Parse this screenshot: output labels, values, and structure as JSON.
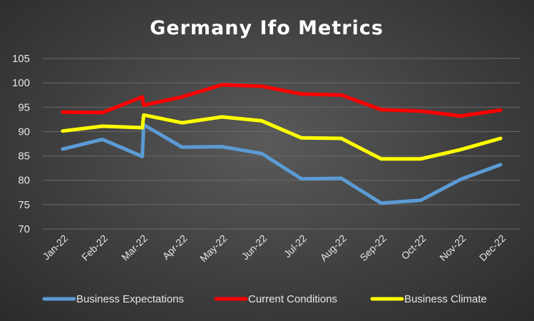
{
  "chart_data": {
    "type": "line",
    "title": "Germany Ifo Metrics",
    "xlabel": "",
    "ylabel": "",
    "ylim": [
      70,
      105
    ],
    "yticks": [
      70,
      75,
      80,
      85,
      90,
      95,
      100,
      105
    ],
    "grid": true,
    "legend_position": "bottom",
    "categories": [
      "Jan-22",
      "Feb-22",
      "Mar-22",
      "Apr-22",
      "May-22",
      "Jun-22",
      "Jul-22",
      "Aug-22",
      "Sep-22",
      "Oct-22",
      "Nov-22",
      "Dec-22"
    ],
    "series": [
      {
        "name": "Business Expectations",
        "color": "#5b9bd5",
        "points": [
          [
            0,
            86.4
          ],
          [
            1,
            88.4
          ],
          [
            2,
            84.9
          ],
          [
            2,
            91.4
          ],
          [
            3,
            86.8
          ],
          [
            4,
            86.9
          ],
          [
            5,
            85.5
          ],
          [
            6,
            80.3
          ],
          [
            7,
            80.4
          ],
          [
            8,
            75.3
          ],
          [
            9,
            75.9
          ],
          [
            10,
            80.2
          ],
          [
            11,
            83.2
          ]
        ]
      },
      {
        "name": "Current Conditions",
        "color": "#ff0000",
        "points": [
          [
            0,
            94.0
          ],
          [
            1,
            93.9
          ],
          [
            2,
            97.1
          ],
          [
            2,
            95.4
          ],
          [
            3,
            97.1
          ],
          [
            4,
            99.6
          ],
          [
            5,
            99.3
          ],
          [
            6,
            97.7
          ],
          [
            7,
            97.5
          ],
          [
            8,
            94.5
          ],
          [
            9,
            94.2
          ],
          [
            10,
            93.2
          ],
          [
            11,
            94.4
          ]
        ]
      },
      {
        "name": "Business Climate",
        "color": "#ffff00",
        "points": [
          [
            0,
            90.1
          ],
          [
            1,
            91.1
          ],
          [
            2,
            90.8
          ],
          [
            2,
            93.4
          ],
          [
            3,
            91.8
          ],
          [
            4,
            93.0
          ],
          [
            5,
            92.2
          ],
          [
            6,
            88.7
          ],
          [
            7,
            88.6
          ],
          [
            8,
            84.4
          ],
          [
            9,
            84.4
          ],
          [
            10,
            86.3
          ],
          [
            11,
            88.6
          ]
        ]
      }
    ]
  }
}
